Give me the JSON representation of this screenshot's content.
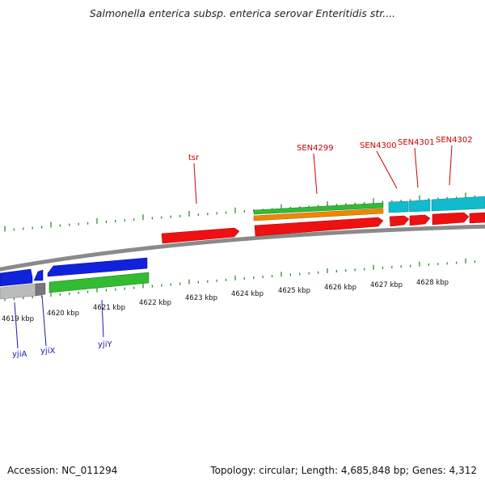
{
  "title": "Salmonella enterica subsp. enterica serovar Enteritidis str....",
  "footer": {
    "accession": "Accession: NC_011294",
    "summary": "Topology: circular; Length: 4,685,848 bp; Genes: 4,312"
  },
  "colors": {
    "backbone": "#8a8a8a",
    "tick": "#2e8b2e",
    "label_red": "#cc0000",
    "label_blue": "#1a1aaa",
    "gene_red": "#ee1111",
    "gene_green": "#33bb33",
    "gene_orange": "#ee8800",
    "gene_cyan": "#11bbcc",
    "gene_blue": "#1122dd",
    "gene_gray": "#bbbbbb"
  },
  "axis": {
    "unit": "kbp",
    "ticks": [
      {
        "kbp": 4619,
        "label": "4619 kbp"
      },
      {
        "kbp": 4620,
        "label": "4620 kbp"
      },
      {
        "kbp": 4621,
        "label": "4621 kbp"
      },
      {
        "kbp": 4622,
        "label": "4622 kbp"
      },
      {
        "kbp": 4623,
        "label": "4623 kbp"
      },
      {
        "kbp": 4624,
        "label": "4624 kbp"
      },
      {
        "kbp": 4625,
        "label": "4625 kbp"
      },
      {
        "kbp": 4626,
        "label": "4626 kbp"
      },
      {
        "kbp": 4627,
        "label": "4627 kbp"
      },
      {
        "kbp": 4628,
        "label": "4628 kbp"
      }
    ]
  },
  "gene_labels": [
    {
      "name": "tsr",
      "strand": "top"
    },
    {
      "name": "SEN4299",
      "strand": "top"
    },
    {
      "name": "SEN4300",
      "strand": "top"
    },
    {
      "name": "SEN4301",
      "strand": "top"
    },
    {
      "name": "SEN4302",
      "strand": "top"
    },
    {
      "name": "yjiA",
      "strand": "bottom"
    },
    {
      "name": "yjiX",
      "strand": "bottom"
    },
    {
      "name": "yjiY",
      "strand": "bottom"
    }
  ]
}
